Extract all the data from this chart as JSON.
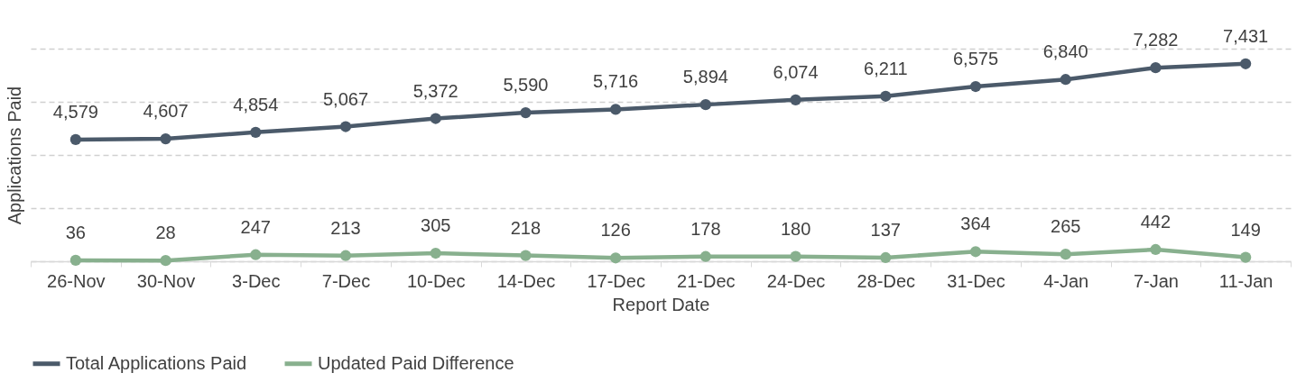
{
  "chart_data": {
    "type": "line",
    "xlabel": "Report Date",
    "ylabel": "Applications Paid",
    "categories": [
      "26-Nov",
      "30-Nov",
      "3-Dec",
      "7-Dec",
      "10-Dec",
      "14-Dec",
      "17-Dec",
      "21-Dec",
      "24-Dec",
      "28-Dec",
      "31-Dec",
      "4-Jan",
      "7-Jan",
      "11-Jan"
    ],
    "series": [
      {
        "name": "Total Applications Paid",
        "color": "#4b5a6a",
        "values": [
          4579,
          4607,
          4854,
          5067,
          5372,
          5590,
          5716,
          5894,
          6074,
          6211,
          6575,
          6840,
          7282,
          7431
        ],
        "value_labels": [
          "4,579",
          "4,607",
          "4,854",
          "5,067",
          "5,372",
          "5,590",
          "5,716",
          "5,894",
          "6,074",
          "6,211",
          "6,575",
          "6,840",
          "7,282",
          "7,431"
        ]
      },
      {
        "name": "Updated Paid Difference",
        "color": "#88b08e",
        "values": [
          36,
          28,
          247,
          213,
          305,
          218,
          126,
          178,
          180,
          137,
          364,
          265,
          442,
          149
        ],
        "value_labels": [
          "36",
          "28",
          "247",
          "213",
          "305",
          "218",
          "126",
          "178",
          "180",
          "137",
          "364",
          "265",
          "442",
          "149"
        ]
      }
    ],
    "ylim": [
      0,
      8000
    ],
    "yticks": [
      {
        "value": 0,
        "label": null
      },
      {
        "value": 2000,
        "label": null
      },
      {
        "value": 4000,
        "label": null
      },
      {
        "value": 6000,
        "label": null
      },
      {
        "value": 8000,
        "label": null
      }
    ],
    "tick_labels": "x",
    "grid": "y",
    "legend": "bottom",
    "marker": "circle",
    "line_style": "solid"
  }
}
